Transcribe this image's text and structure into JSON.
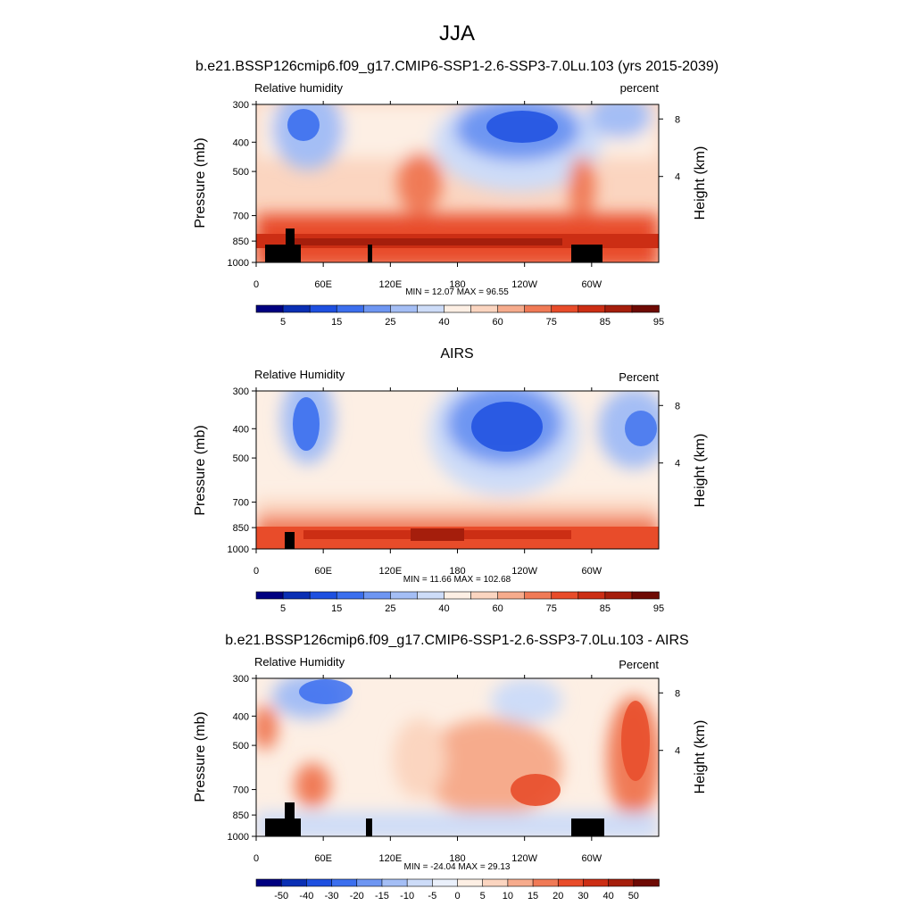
{
  "main_title": "JJA",
  "chart_data": [
    {
      "type": "heatmap",
      "title": "b.e21.BSSP126cmip6.f09_g17.CMIP6-SSP1-2.6-SSP3-7.0Lu.103 (yrs 2015-2039)",
      "left_label": "Relative humidity",
      "right_label": "percent",
      "ylabel": "Pressure (mb)",
      "y2label": "Height (km)",
      "y_ticks": [
        "300",
        "400",
        "500",
        "700",
        "850",
        "1000"
      ],
      "y2_ticks": [
        "8",
        "4"
      ],
      "x_ticks": [
        "0",
        "60E",
        "120E",
        "180",
        "120W",
        "60W"
      ],
      "stats": "MIN =  12.07  MAX =  96.55",
      "colorbar_labels": [
        "5",
        "15",
        "25",
        "40",
        "60",
        "75",
        "85",
        "95"
      ]
    },
    {
      "type": "heatmap",
      "title": "AIRS",
      "left_label": "Relative Humidity",
      "right_label": "Percent",
      "ylabel": "Pressure (mb)",
      "y2label": "Height (km)",
      "y_ticks": [
        "300",
        "400",
        "500",
        "700",
        "850",
        "1000"
      ],
      "y2_ticks": [
        "8",
        "4"
      ],
      "x_ticks": [
        "0",
        "60E",
        "120E",
        "180",
        "120W",
        "60W"
      ],
      "stats": "MIN =  11.66  MAX = 102.68",
      "colorbar_labels": [
        "5",
        "15",
        "25",
        "40",
        "60",
        "75",
        "85",
        "95"
      ]
    },
    {
      "type": "heatmap",
      "title": "b.e21.BSSP126cmip6.f09_g17.CMIP6-SSP1-2.6-SSP3-7.0Lu.103 - AIRS",
      "left_label": "Relative Humidity",
      "right_label": "Percent",
      "ylabel": "Pressure (mb)",
      "y2label": "Height (km)",
      "y_ticks": [
        "300",
        "400",
        "500",
        "700",
        "850",
        "1000"
      ],
      "y2_ticks": [
        "8",
        "4"
      ],
      "x_ticks": [
        "0",
        "60E",
        "120E",
        "180",
        "120W",
        "60W"
      ],
      "stats": "MIN = -24.04  MAX =  29.13",
      "colorbar_labels": [
        "-50",
        "-40",
        "-30",
        "-20",
        "-15",
        "-10",
        "-5",
        "0",
        "5",
        "10",
        "15",
        "20",
        "30",
        "40",
        "50"
      ]
    }
  ],
  "colors": {
    "abs_scale": [
      "#000080",
      "#0a2fb4",
      "#1e50e0",
      "#3c6fee",
      "#6e96f2",
      "#a4bef5",
      "#cddcf8",
      "#fdefe4",
      "#fbd5c0",
      "#f6ab8c",
      "#f07a56",
      "#e84c2a",
      "#cc2e14",
      "#a51e0c",
      "#6e0a04"
    ],
    "diff_scale": [
      "#000080",
      "#0a2fb4",
      "#1e50e0",
      "#3c6fee",
      "#6e96f2",
      "#a4bef5",
      "#cddcf8",
      "#eaf0fb",
      "#fdefe4",
      "#fbd5c0",
      "#f6ab8c",
      "#f07a56",
      "#e84c2a",
      "#cc2e14",
      "#a51e0c",
      "#6e0a04"
    ],
    "terrain": "#000000"
  }
}
